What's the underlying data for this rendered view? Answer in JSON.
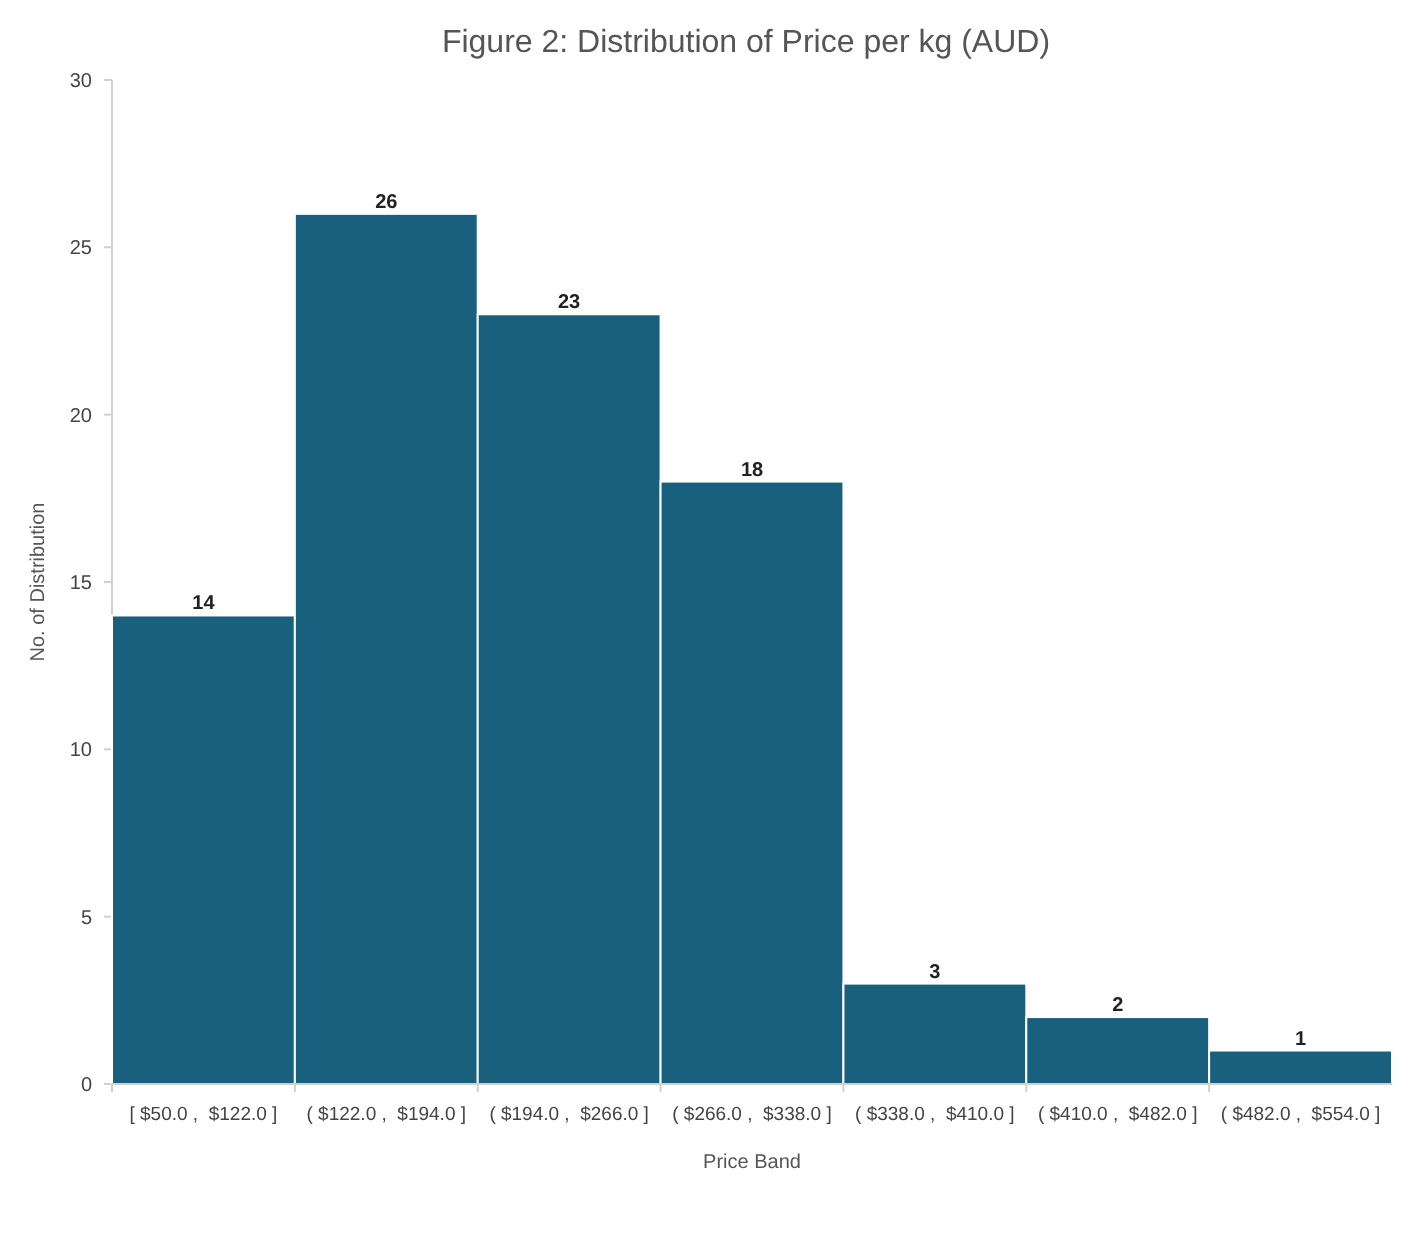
{
  "chart_data": {
    "type": "bar",
    "title": "Figure 2: Distribution of Price per kg (AUD)",
    "xlabel": "Price Band",
    "ylabel": "No. of Distribution",
    "categories": [
      "[ $50.0 ,  $122.0 ]",
      "( $122.0 ,  $194.0 ]",
      "( $194.0 ,  $266.0 ]",
      "( $266.0 ,  $338.0 ]",
      "( $338.0 ,  $410.0 ]",
      "( $410.0 ,  $482.0 ]",
      "( $482.0 ,  $554.0 ]"
    ],
    "values": [
      14,
      26,
      23,
      18,
      3,
      2,
      1
    ],
    "color": "#195f7e",
    "ylim": [
      0,
      30
    ],
    "yticks": [
      0,
      5,
      10,
      15,
      20,
      25,
      30
    ],
    "data_labels": true
  }
}
